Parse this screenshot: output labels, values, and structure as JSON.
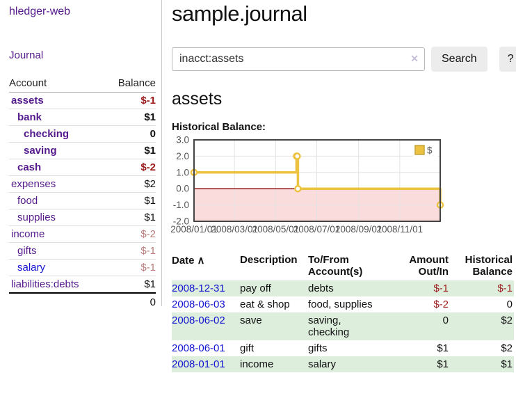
{
  "app": {
    "title": "hledger-web"
  },
  "colors": {
    "link_purple": "#551a8b",
    "link_blue": "#1212d1",
    "negative_strong": "#9d1a1a",
    "negative_muted": "#bb7b7b",
    "row_green": "#ddeedd",
    "chart_gold": "#edc240"
  },
  "sidebar": {
    "journal_link": "Journal",
    "accounts_table": {
      "headers": {
        "account": "Account",
        "balance": "Balance"
      },
      "rows": [
        {
          "name": "assets",
          "depth": 1,
          "in_acct": true,
          "balance": "$-1",
          "balance_style": "neg",
          "link_style": "purple"
        },
        {
          "name": "bank",
          "depth": 2,
          "in_acct": true,
          "balance": "$1",
          "balance_style": "pos",
          "link_style": "purple"
        },
        {
          "name": "checking",
          "depth": 3,
          "in_acct": true,
          "balance": "0",
          "balance_style": "pos",
          "link_style": "purple"
        },
        {
          "name": "saving",
          "depth": 3,
          "in_acct": true,
          "balance": "$1",
          "balance_style": "pos",
          "link_style": "purple"
        },
        {
          "name": "cash",
          "depth": 2,
          "in_acct": true,
          "balance": "$-2",
          "balance_style": "neg",
          "link_style": "purple"
        },
        {
          "name": "expenses",
          "depth": 1,
          "in_acct": false,
          "balance": "$2",
          "balance_style": "pos",
          "link_style": "purple"
        },
        {
          "name": "food",
          "depth": 2,
          "in_acct": false,
          "balance": "$1",
          "balance_style": "pos",
          "link_style": "purple"
        },
        {
          "name": "supplies",
          "depth": 2,
          "in_acct": false,
          "balance": "$1",
          "balance_style": "pos",
          "link_style": "purple"
        },
        {
          "name": "income",
          "depth": 1,
          "in_acct": false,
          "balance": "$-2",
          "balance_style": "negmuted",
          "link_style": "purple"
        },
        {
          "name": "gifts",
          "depth": 2,
          "in_acct": false,
          "balance": "$-1",
          "balance_style": "negmuted",
          "link_style": "purple"
        },
        {
          "name": "salary",
          "depth": 2,
          "in_acct": false,
          "balance": "$-1",
          "balance_style": "negmuted",
          "link_style": "blue"
        },
        {
          "name": "liabilities:debts",
          "depth": 1,
          "in_acct": false,
          "balance": "$1",
          "balance_style": "pos",
          "link_style": "purple"
        }
      ],
      "total": "0"
    }
  },
  "main": {
    "title": "sample.journal",
    "search": {
      "value": "inacct:assets",
      "clear_icon": "✕",
      "button_label": "Search",
      "help_label": "?"
    },
    "account_heading": "assets",
    "chart_label": "Historical Balance:",
    "register": {
      "headers": {
        "date": "Date",
        "sort_icon": "∧",
        "description": "Description",
        "to_from": "To/From\nAccount(s)",
        "amount": "Amount\nOut/In",
        "historical": "Historical\nBalance"
      },
      "rows": [
        {
          "date": "2008-12-31",
          "description": "pay off",
          "to_from": "debts",
          "amount": "$-1",
          "historical": "$-1"
        },
        {
          "date": "2008-06-03",
          "description": "eat & shop",
          "to_from": "food, supplies",
          "amount": "$-2",
          "historical": "0"
        },
        {
          "date": "2008-06-02",
          "description": "save",
          "to_from": "saving,\nchecking",
          "amount": "0",
          "historical": "$2"
        },
        {
          "date": "2008-06-01",
          "description": "gift",
          "to_from": "gifts",
          "amount": "$1",
          "historical": "$2"
        },
        {
          "date": "2008-01-01",
          "description": "income",
          "to_from": "salary",
          "amount": "$1",
          "historical": "$1"
        }
      ]
    }
  },
  "chart_data": {
    "type": "line",
    "title": "Historical Balance",
    "step": true,
    "x_range": [
      "2008-01-01",
      "2008-12-31"
    ],
    "ylim": [
      -2,
      3
    ],
    "series": [
      {
        "name": "$",
        "color": "#edc240",
        "points": [
          {
            "date": "2008-01-01",
            "value": 1
          },
          {
            "date": "2008-06-01",
            "value": 2
          },
          {
            "date": "2008-06-02",
            "value": 2
          },
          {
            "date": "2008-06-03",
            "value": 0
          },
          {
            "date": "2008-12-31",
            "value": -1
          }
        ]
      }
    ],
    "y_ticks": [
      {
        "v": 3,
        "label": "3.0"
      },
      {
        "v": 2,
        "label": "2.0"
      },
      {
        "v": 1,
        "label": "1.0"
      },
      {
        "v": 0,
        "label": "0.0"
      },
      {
        "v": -1,
        "label": "-1.0"
      },
      {
        "v": -2,
        "label": "-2.0"
      }
    ],
    "x_ticks": [
      {
        "date": "2008-01-01",
        "label": "2008/01/01"
      },
      {
        "date": "2008-03-01",
        "label": "2008/03/01"
      },
      {
        "date": "2008-05-01",
        "label": "2008/05/01"
      },
      {
        "date": "2008-07-01",
        "label": "2008/07/01"
      },
      {
        "date": "2008-09-01",
        "label": "2008/09/01"
      },
      {
        "date": "2008-11-01",
        "label": "2008/11/01"
      }
    ],
    "zero_line_color": "#8b0000",
    "negative_fill": "#fbdcdc",
    "grid": true,
    "legend": {
      "label": "$",
      "position": "top-right"
    }
  }
}
